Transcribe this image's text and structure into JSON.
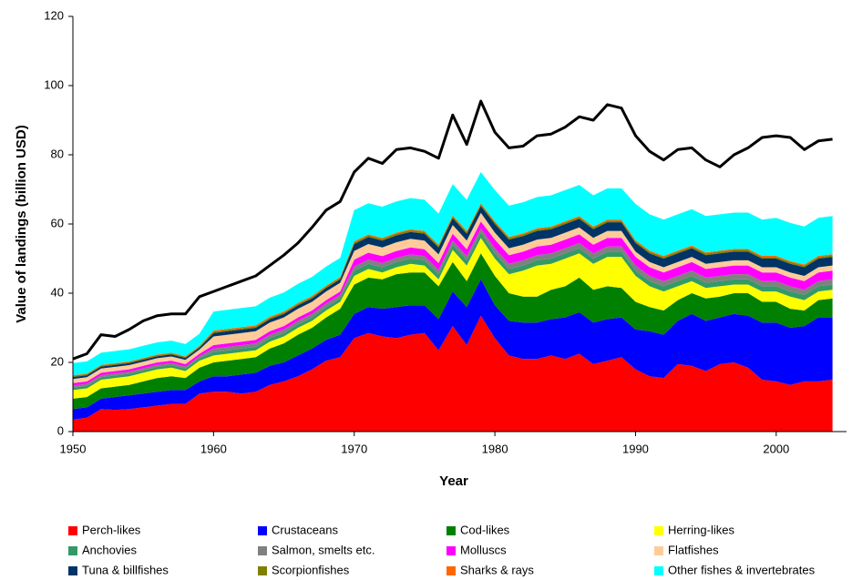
{
  "chart_data": {
    "type": "stacked-area",
    "y_label": "Value of landings (billion USD)",
    "x_label": "Year",
    "x": [
      1950,
      1951,
      1952,
      1953,
      1954,
      1955,
      1956,
      1957,
      1958,
      1959,
      1960,
      1961,
      1962,
      1963,
      1964,
      1965,
      1966,
      1967,
      1968,
      1969,
      1970,
      1971,
      1972,
      1973,
      1974,
      1975,
      1976,
      1977,
      1978,
      1979,
      1980,
      1981,
      1982,
      1983,
      1984,
      1985,
      1986,
      1987,
      1988,
      1989,
      1990,
      1991,
      1992,
      1993,
      1994,
      1995,
      1996,
      1997,
      1998,
      1999,
      2000,
      2001,
      2002,
      2003,
      2004
    ],
    "xlim": [
      1950,
      2005
    ],
    "xticks": [
      1950,
      1960,
      1970,
      1980,
      1990,
      2000
    ],
    "ylim": [
      0,
      120
    ],
    "yticks": [
      0,
      20,
      40,
      60,
      80,
      100,
      120
    ],
    "series": [
      {
        "name": "Perch-likes",
        "color": "#ff0000",
        "values": [
          3.5,
          4,
          6.5,
          6.3,
          6.5,
          7,
          7.5,
          8,
          8,
          11,
          11.5,
          11.5,
          11,
          11.5,
          13.5,
          14.5,
          16,
          18,
          20.5,
          21.5,
          27,
          28.5,
          27.5,
          27,
          28,
          28.5,
          23.5,
          30.5,
          25,
          33.5,
          27,
          22,
          21,
          21,
          22,
          21,
          22.5,
          19.5,
          20.5,
          21.5,
          18,
          16,
          15.5,
          19.5,
          19,
          17.5,
          19.5,
          20,
          18.5,
          15,
          14.5,
          13.5,
          14.5,
          14.5,
          15
        ]
      },
      {
        "name": "Crustaceans",
        "color": "#0000ff",
        "values": [
          3,
          3,
          3,
          3.7,
          4,
          4,
          4,
          4,
          4,
          3.5,
          4.5,
          4.5,
          5.5,
          5.5,
          5.5,
          5.5,
          6,
          6,
          6,
          6.5,
          7,
          7.5,
          8,
          9,
          8.5,
          8,
          9,
          10,
          11,
          10.5,
          9.5,
          10,
          10.5,
          10.5,
          10.5,
          12,
          12,
          12,
          12,
          11.5,
          11.5,
          13,
          12.5,
          12.5,
          15,
          14.5,
          13.5,
          14,
          15,
          16.5,
          17,
          16.5,
          16,
          18.5,
          18
        ]
      },
      {
        "name": "Cod-likes",
        "color": "#008000",
        "values": [
          3,
          3,
          3,
          3,
          3,
          3.5,
          4,
          4,
          3.5,
          4,
          4,
          4.5,
          4.5,
          4.5,
          5,
          5.5,
          6,
          6,
          6.5,
          7.5,
          8.5,
          8.5,
          8.5,
          9.5,
          9.5,
          9.5,
          9.5,
          8.5,
          7.5,
          7.5,
          8.5,
          8,
          7.5,
          7.5,
          8.5,
          9,
          10,
          9.5,
          9.5,
          8.5,
          8,
          7,
          7,
          6,
          6,
          6.5,
          6,
          6,
          6.5,
          6,
          6,
          5.5,
          4.5,
          5,
          5.5
        ]
      },
      {
        "name": "Herring-likes",
        "color": "#ffff00",
        "values": [
          2.5,
          2.5,
          2.5,
          2.5,
          2.5,
          2.5,
          2.5,
          2.5,
          2,
          2,
          2,
          2,
          2,
          2,
          2,
          2,
          2,
          2,
          2,
          2,
          2.5,
          2.5,
          2,
          2,
          2.5,
          2,
          2,
          3.5,
          4.5,
          4.5,
          5,
          5.5,
          7.5,
          9,
          7.5,
          8,
          7,
          7.5,
          8.5,
          9,
          7.5,
          6,
          5.5,
          4,
          3.5,
          3,
          3,
          2.5,
          2.5,
          3,
          3,
          3.5,
          3,
          2.5,
          2.5
        ]
      },
      {
        "name": "Anchovies",
        "color": "#339966",
        "values": [
          0.7,
          0.7,
          0.7,
          0.7,
          0.7,
          0.7,
          0.7,
          0.7,
          0.7,
          0.7,
          1,
          1,
          1,
          1,
          1,
          1,
          1,
          1,
          1,
          1,
          1.5,
          1.5,
          1.5,
          1.5,
          1.5,
          1.5,
          1.5,
          1.5,
          1.5,
          1.5,
          1.5,
          1.5,
          1.5,
          1.5,
          1.5,
          1.5,
          1.5,
          1.5,
          1.5,
          1.5,
          1.5,
          1.5,
          1.5,
          1.5,
          1.5,
          1.5,
          1.5,
          1.5,
          1.5,
          1.5,
          1.5,
          1.5,
          1.5,
          1.5,
          1.5
        ]
      },
      {
        "name": "Salmon, smelts etc.",
        "color": "#808080",
        "values": [
          0.6,
          0.6,
          0.6,
          0.6,
          0.6,
          0.6,
          0.6,
          0.6,
          0.6,
          0.6,
          1,
          1,
          1,
          1,
          1,
          1,
          1,
          1,
          1,
          1,
          1.2,
          1.2,
          1.2,
          1.2,
          1.2,
          1.2,
          1.2,
          1.2,
          1.2,
          1.2,
          1.5,
          1.5,
          1.5,
          1.5,
          1.5,
          1.5,
          1.5,
          1.5,
          1.5,
          1.5,
          1.5,
          1.5,
          1.5,
          1.5,
          1.5,
          1.5,
          1.5,
          1.5,
          1.5,
          1.5,
          1.5,
          1.5,
          1.5,
          1.5,
          1.5
        ]
      },
      {
        "name": "Molluscs",
        "color": "#ff00ff",
        "values": [
          0.7,
          0.7,
          0.7,
          0.7,
          0.7,
          0.7,
          0.7,
          0.7,
          0.7,
          0.7,
          1,
          1,
          1,
          1,
          1,
          1,
          1,
          1,
          1,
          1,
          2,
          2,
          2,
          2,
          2,
          2,
          2,
          2,
          2,
          2,
          2.5,
          2.5,
          2.5,
          2.5,
          2.5,
          2.5,
          2.5,
          2.5,
          2.5,
          2.5,
          2.5,
          2.5,
          2.5,
          2.5,
          2.5,
          2.5,
          2.5,
          2.5,
          2.5,
          2.5,
          2.5,
          2.5,
          2.5,
          2.5,
          2.5
        ]
      },
      {
        "name": "Flatfishes",
        "color": "#ffcc99",
        "values": [
          1.2,
          1.2,
          1.2,
          1.2,
          1.2,
          1.2,
          1.2,
          1.2,
          1.2,
          1.2,
          2.5,
          2.5,
          2.5,
          2.5,
          2.5,
          2.5,
          2.5,
          2.5,
          2.5,
          2.5,
          2.5,
          2.5,
          2.5,
          2.5,
          2.5,
          2.5,
          2.5,
          2.5,
          2.5,
          2.5,
          2,
          2,
          2,
          2,
          2,
          2,
          2,
          2,
          2,
          2,
          1.5,
          1.5,
          1.5,
          1.5,
          1.5,
          1.5,
          1.5,
          1.5,
          1.5,
          1.5,
          1.5,
          1.5,
          1.5,
          1.5,
          1.5
        ]
      },
      {
        "name": "Tuna & billfishes",
        "color": "#003366",
        "values": [
          0.6,
          0.6,
          0.6,
          0.6,
          0.6,
          0.6,
          0.6,
          0.6,
          0.6,
          0.6,
          1,
          1,
          1,
          1,
          1,
          1,
          1,
          1,
          1,
          1,
          2,
          2,
          2,
          2,
          2,
          2,
          2,
          2,
          2,
          2,
          2.5,
          2.5,
          2.5,
          2.5,
          2.5,
          2.5,
          2.5,
          2.5,
          2.5,
          2.5,
          2.5,
          2.5,
          2.5,
          2.5,
          2.5,
          2.5,
          2.5,
          2.5,
          2.5,
          2.5,
          2.5,
          2.5,
          2.5,
          2.5,
          2.5
        ]
      },
      {
        "name": "Scorpionfishes",
        "color": "#808000",
        "values": [
          0.3,
          0.3,
          0.3,
          0.3,
          0.3,
          0.3,
          0.3,
          0.3,
          0.3,
          0.3,
          0.4,
          0.4,
          0.4,
          0.4,
          0.4,
          0.4,
          0.4,
          0.4,
          0.4,
          0.4,
          0.5,
          0.5,
          0.5,
          0.5,
          0.5,
          0.5,
          0.5,
          0.5,
          0.5,
          0.5,
          0.5,
          0.5,
          0.5,
          0.5,
          0.5,
          0.5,
          0.5,
          0.5,
          0.5,
          0.5,
          0.5,
          0.5,
          0.5,
          0.5,
          0.5,
          0.5,
          0.5,
          0.5,
          0.5,
          0.5,
          0.5,
          0.5,
          0.5,
          0.5,
          0.5
        ]
      },
      {
        "name": "Sharks & rays",
        "color": "#ff6600",
        "values": [
          0.2,
          0.2,
          0.2,
          0.2,
          0.2,
          0.2,
          0.2,
          0.2,
          0.2,
          0.2,
          0.3,
          0.3,
          0.3,
          0.3,
          0.3,
          0.3,
          0.3,
          0.3,
          0.3,
          0.3,
          0.3,
          0.3,
          0.3,
          0.3,
          0.3,
          0.3,
          0.3,
          0.3,
          0.3,
          0.3,
          0.3,
          0.3,
          0.3,
          0.3,
          0.3,
          0.3,
          0.3,
          0.3,
          0.3,
          0.3,
          0.3,
          0.3,
          0.3,
          0.3,
          0.3,
          0.3,
          0.3,
          0.3,
          0.3,
          0.3,
          0.3,
          0.3,
          0.3,
          0.3,
          0.3
        ]
      },
      {
        "name": "Other fishes & invertebrates",
        "color": "#00ffff",
        "values": [
          3.5,
          3.5,
          3.5,
          3.5,
          3.5,
          3.5,
          3.5,
          3.5,
          3.5,
          3.5,
          5.5,
          5.5,
          5.5,
          5.5,
          5.5,
          5.5,
          5.5,
          5.5,
          5.5,
          5.5,
          9,
          9,
          9,
          9,
          9,
          9,
          9,
          9,
          9,
          9,
          9,
          9,
          9,
          9,
          9,
          9,
          9,
          9,
          9,
          9,
          10.5,
          10.5,
          10.5,
          10.5,
          10.5,
          10.5,
          10.5,
          10.5,
          10.5,
          10.5,
          11,
          11,
          11,
          11,
          11
        ]
      }
    ],
    "line": {
      "color": "#000000",
      "values": [
        21,
        22.5,
        28,
        27.5,
        29.5,
        32,
        33.5,
        34,
        34,
        39,
        40.5,
        42,
        43.5,
        45,
        48,
        51,
        54.5,
        59,
        64,
        66.5,
        75,
        79,
        77.5,
        81.5,
        82,
        81,
        79,
        91.5,
        83,
        95.5,
        86.5,
        82,
        82.5,
        85.5,
        86,
        88,
        91,
        90,
        94.5,
        93.5,
        85.5,
        81,
        78.5,
        81.5,
        82,
        78.5,
        76.5,
        80,
        82,
        85,
        85.5,
        85,
        81.5,
        84,
        84.5
      ]
    }
  }
}
